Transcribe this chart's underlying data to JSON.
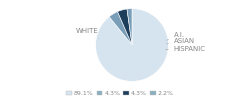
{
  "labels": [
    "WHITE",
    "A.I.",
    "ASIAN",
    "HISPANIC"
  ],
  "values": [
    89.1,
    4.3,
    4.3,
    2.2
  ],
  "colors": [
    "#d6e4ef",
    "#7a9eb8",
    "#1e3f5c",
    "#7a9eb8"
  ],
  "legend_colors": [
    "#d6e4ef",
    "#8aafc0",
    "#1e3f5c",
    "#8aafc0"
  ],
  "legend_labels": [
    "89.1%",
    "4.3%",
    "4.3%",
    "2.2%"
  ],
  "startangle": 90,
  "bg_color": "#ffffff",
  "text_color": "#888888",
  "label_fontsize": 5.0,
  "legend_fontsize": 4.5
}
